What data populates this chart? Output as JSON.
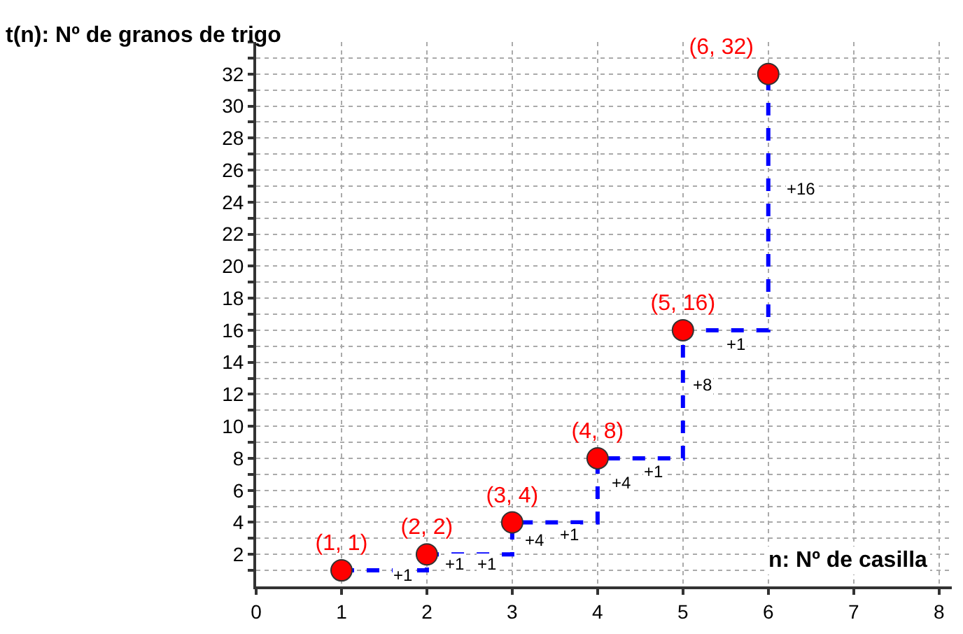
{
  "chart_data": {
    "type": "scatter",
    "xlabel": "n: Nº de casilla",
    "ylabel": "t(n): Nº de granos de trigo",
    "x": [
      1,
      2,
      3,
      4,
      5,
      6
    ],
    "series": [
      {
        "type": "step",
        "color": "#0000ff",
        "line_style": "dashed",
        "values": [
          1,
          2,
          4,
          8,
          16,
          32
        ]
      },
      {
        "color": "#ff0000",
        "marker": "circle",
        "values": [
          1,
          2,
          4,
          8,
          16,
          32
        ],
        "value_labels": [
          "(1, 1)",
          "(2, 2)",
          "(3, 4)",
          "(4, 8)",
          "(5, 16)",
          "(6, 32)"
        ]
      }
    ],
    "annotations": [
      "+1",
      "+1",
      "+1",
      "+4",
      "+1",
      "+4",
      "+1",
      "+8",
      "+1",
      "+16"
    ],
    "xlim": [
      0,
      8.15
    ],
    "xticks": [
      0,
      1,
      2,
      3,
      4,
      5,
      6,
      7,
      8
    ],
    "ylim": [
      0,
      34
    ],
    "yticks": [
      {
        "value": 1,
        "label": null
      },
      2,
      {
        "value": 3,
        "label": null
      },
      4,
      {
        "value": 5,
        "label": null
      },
      6,
      {
        "value": 7,
        "label": null
      },
      8,
      {
        "value": 9,
        "label": null
      },
      10,
      {
        "value": 11,
        "label": null
      },
      12,
      {
        "value": 13,
        "label": null
      },
      14,
      {
        "value": 15,
        "label": null
      },
      16,
      {
        "value": 17,
        "label": null
      },
      18,
      {
        "value": 19,
        "label": null
      },
      20,
      {
        "value": 21,
        "label": null
      },
      22,
      {
        "value": 23,
        "label": null
      },
      24,
      {
        "value": 25,
        "label": null
      },
      26,
      {
        "value": 27,
        "label": null
      },
      28,
      {
        "value": 29,
        "label": null
      },
      30,
      {
        "value": 31,
        "label": null
      },
      32,
      {
        "value": 33,
        "label": null
      },
      {
        "value": 34,
        "label": null
      }
    ],
    "grid": true,
    "legend": false
  }
}
